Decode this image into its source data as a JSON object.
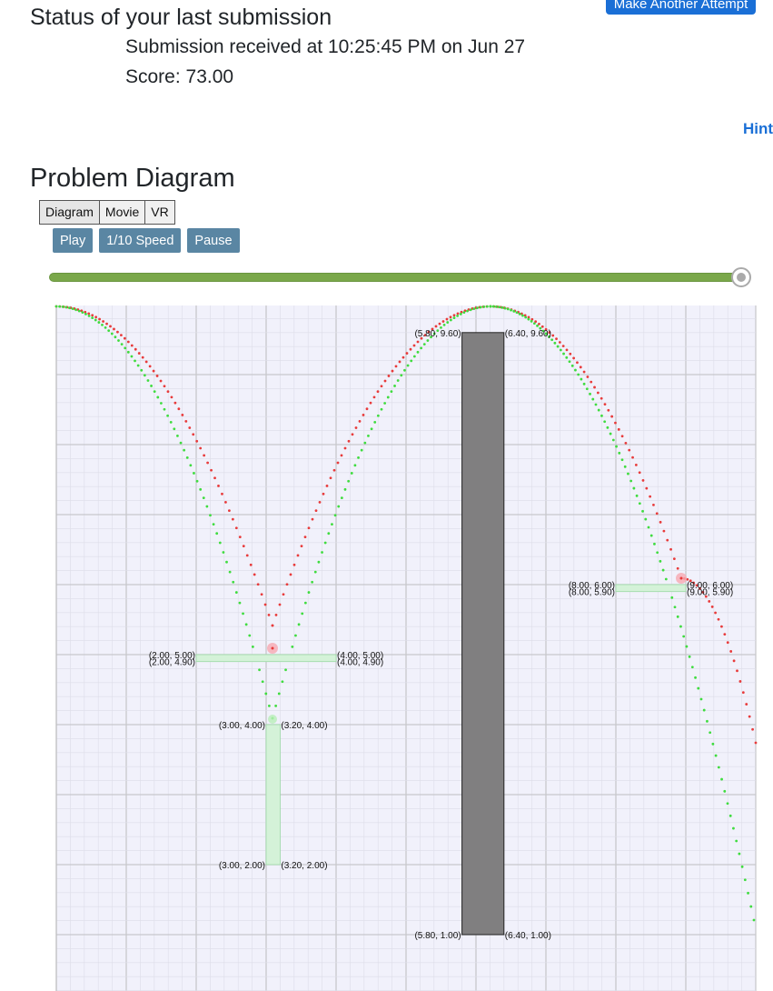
{
  "status": {
    "heading": "Status of your last submission",
    "submission_text": "Submission received at 10:25:45 PM on Jun 27",
    "score_text": "Score: 73.00",
    "attempt_button": "Make Another Attempt",
    "hint": "Hint"
  },
  "diagram": {
    "heading": "Problem Diagram",
    "tabs": [
      "Diagram",
      "Movie",
      "VR"
    ],
    "controls": {
      "play": "Play",
      "slow": "1/10 Speed",
      "pause": "Pause"
    },
    "slider_value": 1.0,
    "colors": {
      "trail_red": "#e83b3b",
      "trail_green": "#3fdc3f",
      "block": "#807f80",
      "platform": "#d4f2d8",
      "grid_bg": "#f1f1fb"
    },
    "blocks": [
      {
        "kind": "dark",
        "x1": 5.8,
        "y1": 1.0,
        "x2": 6.4,
        "y2": 9.6
      },
      {
        "kind": "light",
        "x1": 2.0,
        "y1": 4.9,
        "x2": 4.0,
        "y2": 5.0
      },
      {
        "kind": "light",
        "x1": 3.0,
        "y1": 2.0,
        "x2": 3.2,
        "y2": 4.0
      },
      {
        "kind": "light",
        "x1": 8.0,
        "y1": 5.9,
        "x2": 9.0,
        "y2": 6.0
      }
    ],
    "labels": [
      {
        "text": "(5.80, 9.60)",
        "x": 5.8,
        "y": 9.6,
        "anchor": "end"
      },
      {
        "text": "(6.40, 9.60)",
        "x": 6.4,
        "y": 9.6,
        "anchor": "start"
      },
      {
        "text": "(5.80, 1.00)",
        "x": 5.8,
        "y": 1.0,
        "anchor": "end"
      },
      {
        "text": "(6.40, 1.00)",
        "x": 6.4,
        "y": 1.0,
        "anchor": "start"
      },
      {
        "text": "(2.00, 5.00)",
        "x": 2.0,
        "y": 5.0,
        "anchor": "end"
      },
      {
        "text": "(4.00, 5.00)",
        "x": 4.0,
        "y": 5.0,
        "anchor": "start"
      },
      {
        "text": "(2.00, 4.90)",
        "x": 2.0,
        "y": 4.9,
        "anchor": "end"
      },
      {
        "text": "(4.00, 4.90)",
        "x": 4.0,
        "y": 4.9,
        "anchor": "start"
      },
      {
        "text": "(3.00, 4.00)",
        "x": 3.0,
        "y": 4.0,
        "anchor": "end"
      },
      {
        "text": "(3.20, 4.00)",
        "x": 3.2,
        "y": 4.0,
        "anchor": "start"
      },
      {
        "text": "(3.00, 2.00)",
        "x": 3.0,
        "y": 2.0,
        "anchor": "end"
      },
      {
        "text": "(3.20, 2.00)",
        "x": 3.2,
        "y": 2.0,
        "anchor": "start"
      },
      {
        "text": "(8.00, 6.00)",
        "x": 8.0,
        "y": 6.0,
        "anchor": "end"
      },
      {
        "text": "(9.00, 6.00)",
        "x": 9.0,
        "y": 6.0,
        "anchor": "start"
      },
      {
        "text": "(8.00, 5.90)",
        "x": 8.0,
        "y": 5.9,
        "anchor": "end"
      },
      {
        "text": "(9.00, 5.90)",
        "x": 9.0,
        "y": 5.9,
        "anchor": "start"
      }
    ]
  }
}
